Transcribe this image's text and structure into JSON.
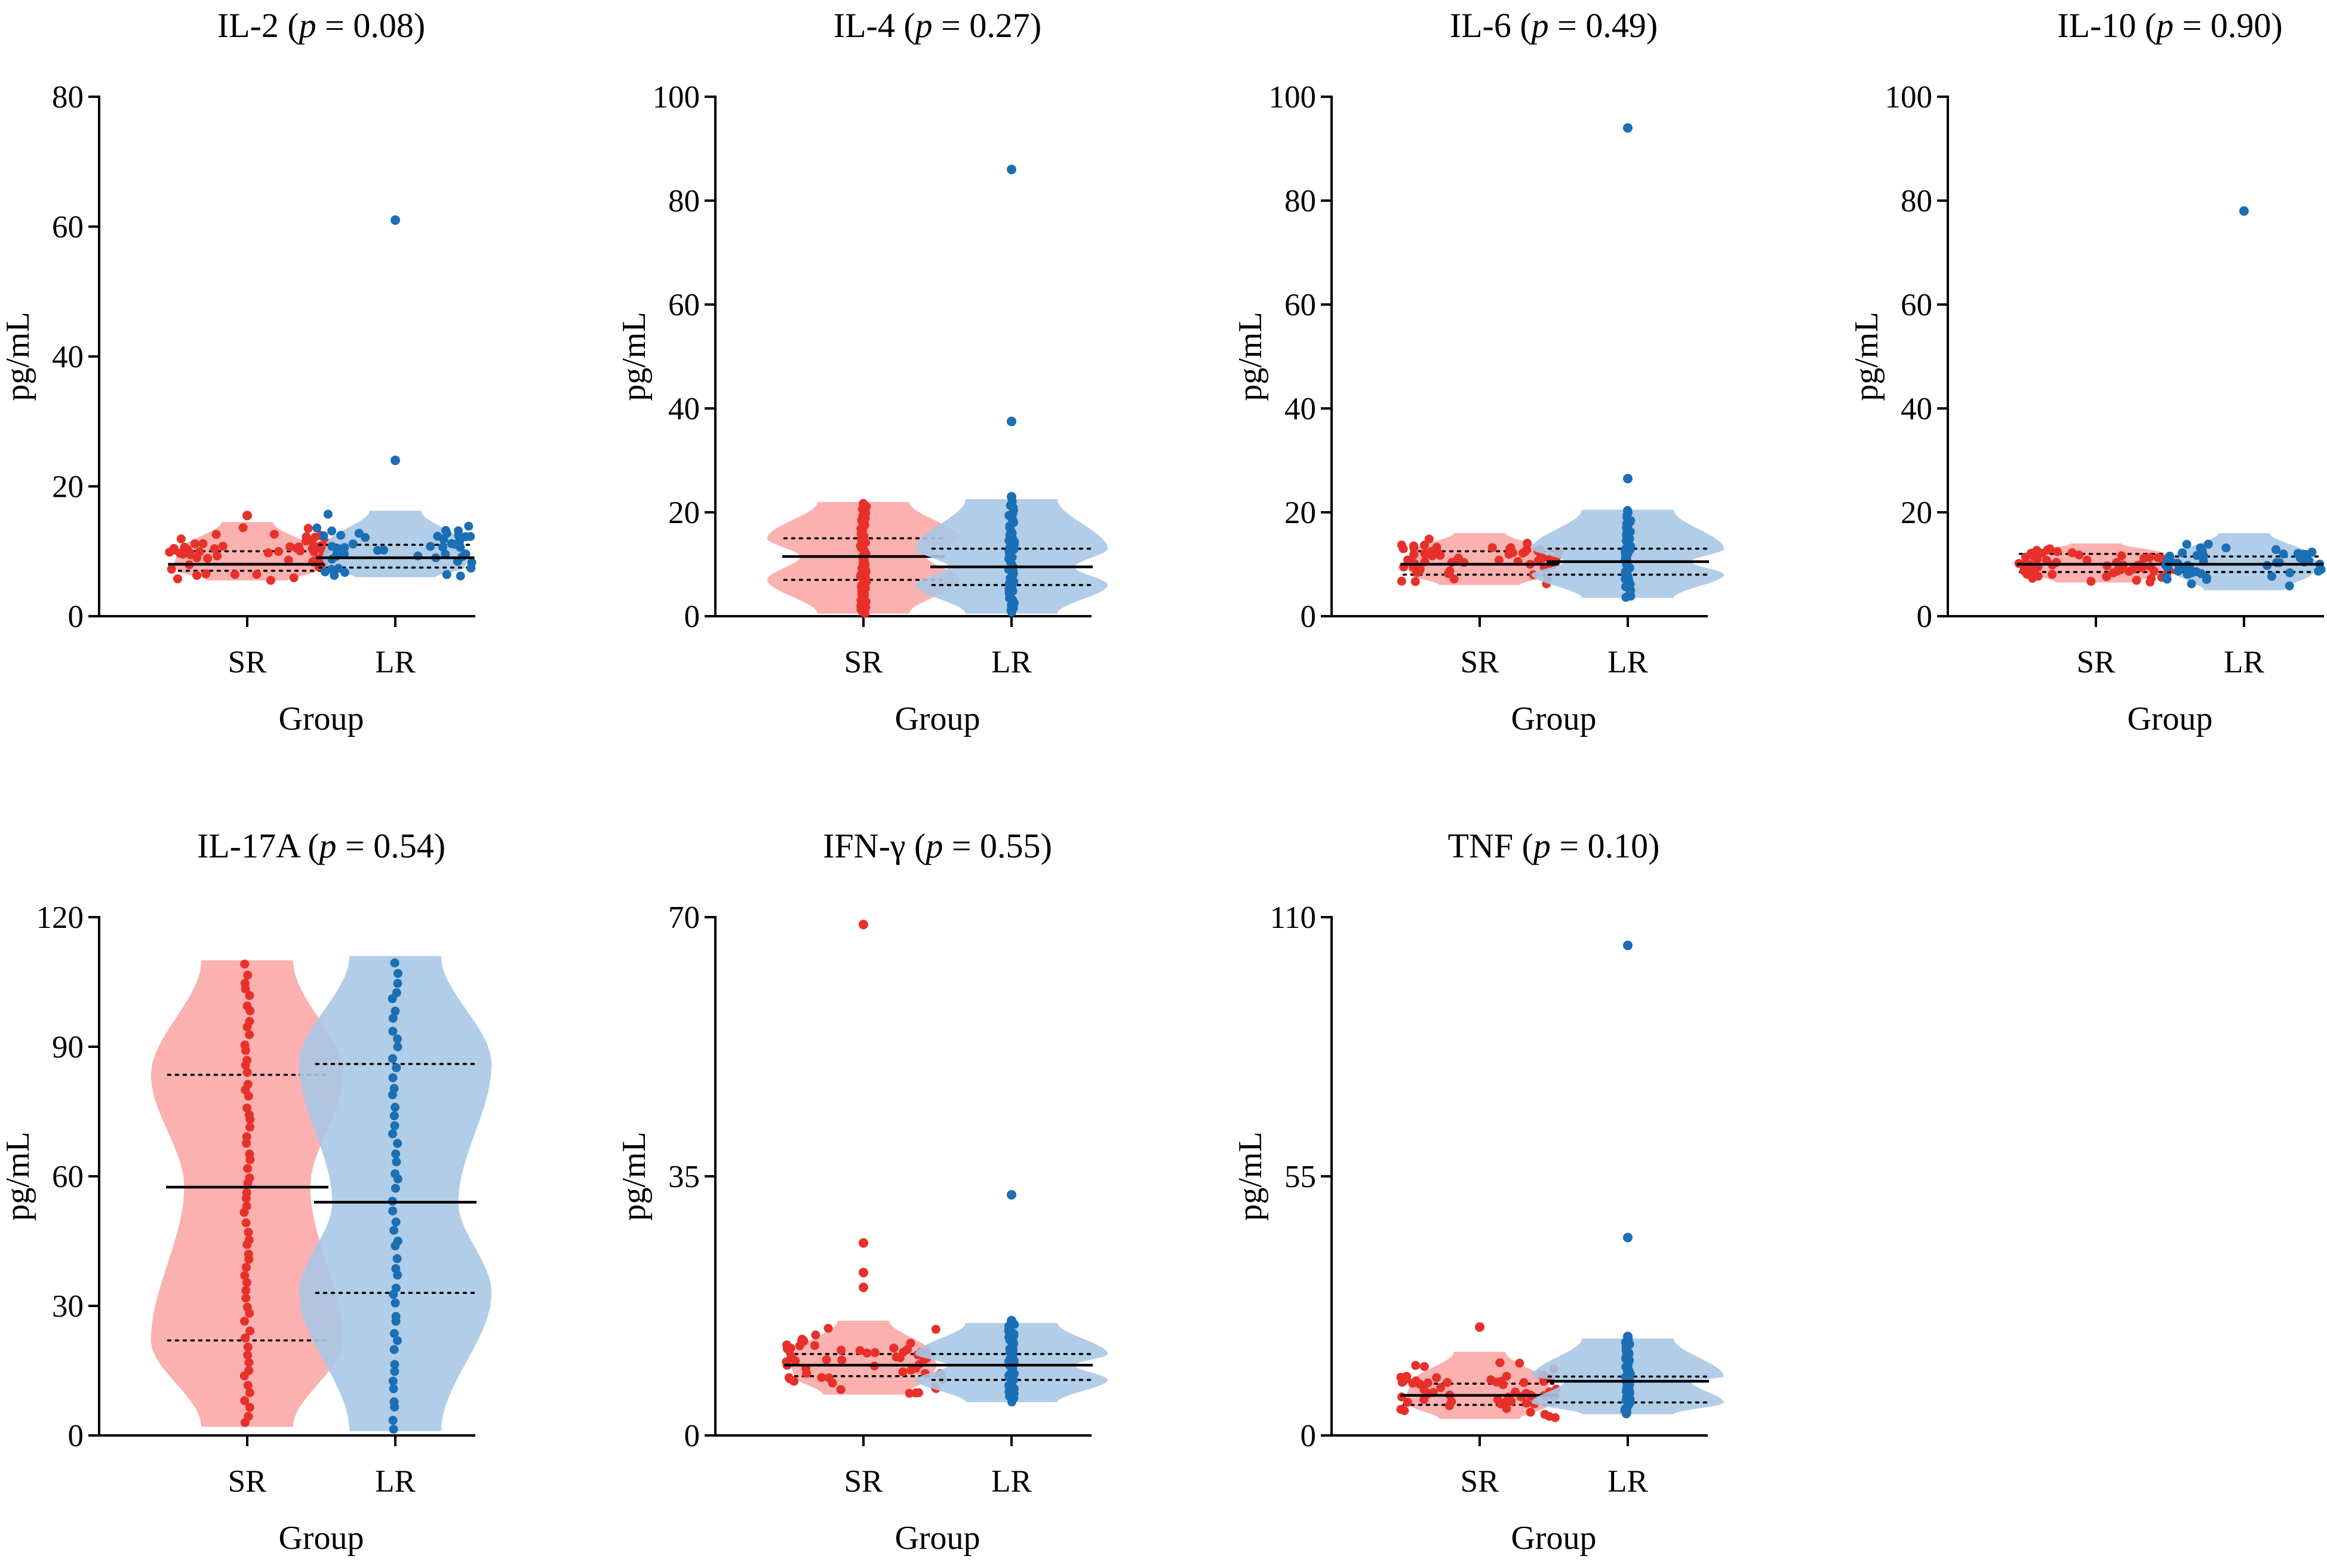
{
  "figure": {
    "x_axis_label": "Group",
    "y_axis_label": "pg/mL"
  },
  "colors": {
    "SR_point": "#e8302a",
    "SR_violin": "#f9a9a6",
    "LR_point": "#1a6fb5",
    "LR_violin": "#a8c8e6"
  },
  "chart_data": [
    {
      "type": "violin",
      "title_name": "IL-2",
      "p_prefix": "p",
      "p_text": " = 0.08",
      "p_value": 0.08,
      "xlabel": "Group",
      "ylabel": "pg/mL",
      "ylim": [
        0,
        80
      ],
      "yticks": [
        0,
        20,
        40,
        60,
        80
      ],
      "categories": [
        "SR",
        "LR"
      ],
      "series": [
        {
          "name": "SR",
          "median": 8.0,
          "q1": 7.0,
          "q3": 10.0,
          "min": 5.5,
          "max": 15.5,
          "n": 60,
          "outliers": [
            15.5
          ]
        },
        {
          "name": "LR",
          "median": 9.0,
          "q1": 7.5,
          "q3": 11.0,
          "min": 6.0,
          "max": 61.0,
          "n": 50,
          "outliers": [
            24.0,
            61.0
          ]
        }
      ]
    },
    {
      "type": "violin",
      "title_name": "IL-4",
      "p_prefix": "p",
      "p_text": " = 0.27",
      "p_value": 0.27,
      "xlabel": "Group",
      "ylabel": "pg/mL",
      "ylim": [
        0,
        100
      ],
      "yticks": [
        0,
        20,
        40,
        60,
        80,
        100
      ],
      "categories": [
        "SR",
        "LR"
      ],
      "series": [
        {
          "name": "SR",
          "median": 11.5,
          "q1": 7.0,
          "q3": 15.0,
          "min": 0.5,
          "max": 22.0,
          "n": 60,
          "outliers": []
        },
        {
          "name": "LR",
          "median": 9.5,
          "q1": 6.0,
          "q3": 13.0,
          "min": 0.5,
          "max": 86.0,
          "n": 50,
          "outliers": [
            23.0,
            37.5,
            86.0
          ]
        }
      ]
    },
    {
      "type": "violin",
      "title_name": "IL-6",
      "p_prefix": "p",
      "p_text": " = 0.49",
      "p_value": 0.49,
      "xlabel": "Group",
      "ylabel": "pg/mL",
      "ylim": [
        0,
        100
      ],
      "yticks": [
        0,
        20,
        40,
        60,
        80,
        100
      ],
      "categories": [
        "SR",
        "LR"
      ],
      "series": [
        {
          "name": "SR",
          "median": 10.0,
          "q1": 8.0,
          "q3": 12.5,
          "min": 6.0,
          "max": 16.0,
          "n": 60,
          "outliers": []
        },
        {
          "name": "LR",
          "median": 10.5,
          "q1": 8.0,
          "q3": 13.0,
          "min": 3.5,
          "max": 94.0,
          "n": 50,
          "outliers": [
            26.5,
            94.0
          ]
        }
      ]
    },
    {
      "type": "violin",
      "title_name": "IL-10",
      "p_prefix": "p",
      "p_text": " = 0.90",
      "p_value": 0.9,
      "xlabel": "Group",
      "ylabel": "pg/mL",
      "ylim": [
        0,
        100
      ],
      "yticks": [
        0,
        20,
        40,
        60,
        80,
        100
      ],
      "categories": [
        "SR",
        "LR"
      ],
      "series": [
        {
          "name": "SR",
          "median": 10.0,
          "q1": 8.5,
          "q3": 12.0,
          "min": 6.5,
          "max": 14.0,
          "n": 60,
          "outliers": []
        },
        {
          "name": "LR",
          "median": 10.0,
          "q1": 8.5,
          "q3": 11.5,
          "min": 5.0,
          "max": 78.0,
          "n": 50,
          "outliers": [
            78.0
          ]
        }
      ]
    },
    {
      "type": "violin",
      "title_name": "IL-17A",
      "p_prefix": "p",
      "p_text": " = 0.54",
      "p_value": 0.54,
      "xlabel": "Group",
      "ylabel": "pg/mL",
      "ylim": [
        0,
        120
      ],
      "yticks": [
        0,
        30,
        60,
        90,
        120
      ],
      "categories": [
        "SR",
        "LR"
      ],
      "series": [
        {
          "name": "SR",
          "median": 57.5,
          "q1": 22.0,
          "q3": 83.5,
          "min": 2.0,
          "max": 110.0,
          "n": 60,
          "outliers": []
        },
        {
          "name": "LR",
          "median": 54.0,
          "q1": 33.0,
          "q3": 86.0,
          "min": 1.0,
          "max": 111.0,
          "n": 50,
          "outliers": []
        }
      ]
    },
    {
      "type": "violin",
      "title_name": "IFN-γ",
      "p_prefix": "p",
      "p_text": " = 0.55",
      "p_value": 0.55,
      "xlabel": "Group",
      "ylabel": "pg/mL",
      "ylim": [
        0,
        70
      ],
      "yticks": [
        0,
        35,
        70
      ],
      "categories": [
        "SR",
        "LR"
      ],
      "series": [
        {
          "name": "SR",
          "median": 9.5,
          "q1": 8.0,
          "q3": 11.0,
          "min": 5.5,
          "max": 69.0,
          "n": 60,
          "outliers": [
            20.0,
            22.0,
            26.0,
            69.0
          ]
        },
        {
          "name": "LR",
          "median": 9.5,
          "q1": 7.5,
          "q3": 11.0,
          "min": 4.5,
          "max": 32.5,
          "n": 50,
          "outliers": [
            15.5,
            32.5
          ]
        }
      ]
    },
    {
      "type": "violin",
      "title_name": "TNF",
      "p_prefix": "p",
      "p_text": " = 0.10",
      "p_value": 0.1,
      "xlabel": "Group",
      "ylabel": "pg/mL",
      "ylim": [
        0,
        110
      ],
      "yticks": [
        0,
        55,
        110
      ],
      "categories": [
        "SR",
        "LR"
      ],
      "series": [
        {
          "name": "SR",
          "median": 8.5,
          "q1": 6.5,
          "q3": 11.0,
          "min": 3.5,
          "max": 23.0,
          "n": 60,
          "outliers": [
            23.0
          ]
        },
        {
          "name": "LR",
          "median": 11.5,
          "q1": 7.0,
          "q3": 12.5,
          "min": 4.5,
          "max": 104.0,
          "n": 50,
          "outliers": [
            21.0,
            42.0,
            104.0
          ]
        }
      ]
    }
  ]
}
